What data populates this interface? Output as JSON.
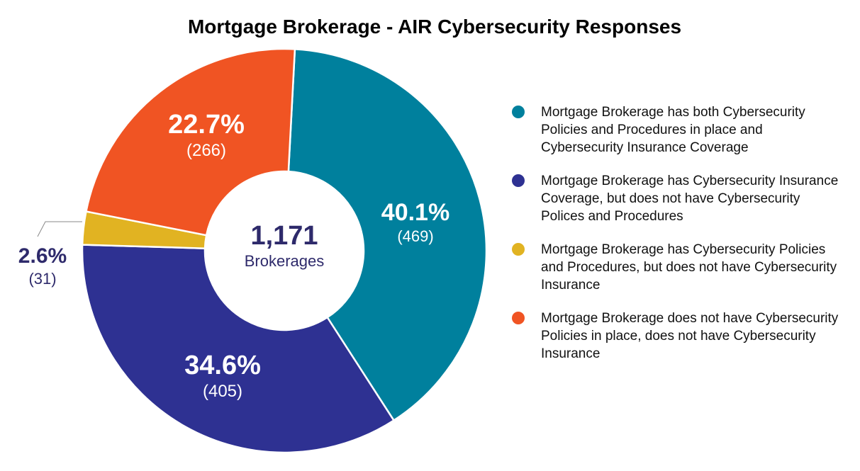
{
  "chart_data": {
    "type": "pie",
    "title": "Mortgage Brokerage - AIR Cybersecurity Responses",
    "center_value": "1,171",
    "center_label": "Brokerages",
    "total": 1171,
    "slices": [
      {
        "label": "Mortgage Brokerage has both Cybersecurity Policies and Procedures in place and Cybersecurity Insurance Coverage",
        "value": 469,
        "percent_label": "40.1%",
        "count_label": "(469)",
        "color": "#00809D"
      },
      {
        "label": "Mortgage Brokerage has Cybersecurity Insurance Coverage, but does not have Cybersecurity Polices and Procedures",
        "value": 405,
        "percent_label": "34.6%",
        "count_label": "(405)",
        "color": "#2E3192"
      },
      {
        "label": "Mortgage Brokerage has Cybersecurity Policies and Procedures, but does not have Cybersecurity Insurance",
        "value": 31,
        "percent_label": "2.6%",
        "count_label": "(31)",
        "color": "#E1B322"
      },
      {
        "label": "Mortgage Brokerage does not have Cybersecurity Policies in place, does not have Cybersecurity Insurance",
        "value": 266,
        "percent_label": "22.7%",
        "count_label": "(266)",
        "color": "#F05423"
      }
    ],
    "legend_position": "right"
  }
}
